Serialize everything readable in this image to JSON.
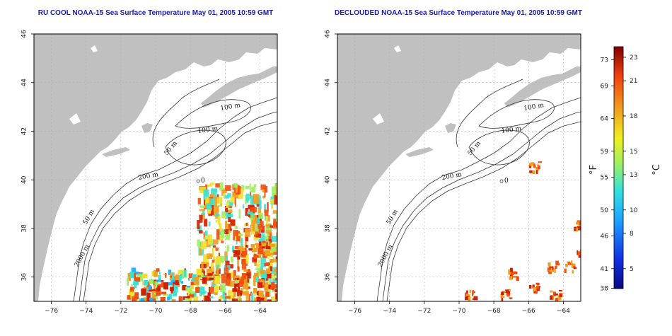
{
  "panels": [
    {
      "id": "left",
      "title": "RU COOL NOAA-15 Sea Surface Temperature May 01, 2005 10:59 GMT",
      "variant": "raw"
    },
    {
      "id": "right",
      "title": "DECLOUDED NOAA-15 Sea Surface Temperature May 01, 2005 10:59 GMT",
      "variant": "declouded"
    }
  ],
  "axes": {
    "lon_range": [
      -77,
      -63
    ],
    "lat_range": [
      35,
      46
    ],
    "lon_ticks": [
      -76,
      -74,
      -72,
      -70,
      -68,
      -66,
      -64
    ],
    "lon_tick_labels": [
      "−76",
      "−74",
      "−72",
      "−70",
      "−68",
      "−66",
      "−64"
    ],
    "lat_ticks": [
      36,
      38,
      40,
      42,
      44,
      46
    ],
    "lat_tick_labels": [
      "36",
      "38",
      "40",
      "42",
      "44",
      "46"
    ]
  },
  "contour_labels": [
    "100 m",
    "100 m",
    "50 m",
    "200 m",
    "50 m",
    "2000 m",
    "0"
  ],
  "colorbar": {
    "unit_left": "°F",
    "unit_right": "°C",
    "fahrenheit_labels": [
      "73",
      "69",
      "64",
      "59",
      "55",
      "50",
      "46",
      "41",
      "38"
    ],
    "celsius_labels": [
      "23",
      "21",
      "18",
      "15",
      "13",
      "10",
      "8",
      "5"
    ],
    "celsius_values": [
      23,
      21,
      18,
      15,
      13,
      10,
      8,
      5
    ],
    "range_c": [
      3.3,
      23.9
    ],
    "colors": [
      "#0a0a80",
      "#1030e0",
      "#1fa0ff",
      "#30e0e0",
      "#a0f060",
      "#f0f020",
      "#f0a020",
      "#f04010",
      "#800000"
    ]
  },
  "colors": {
    "land": "#c0c0c0",
    "contour": "#333333",
    "grid": "#b0b0b0",
    "title": "#1a1aa6"
  }
}
